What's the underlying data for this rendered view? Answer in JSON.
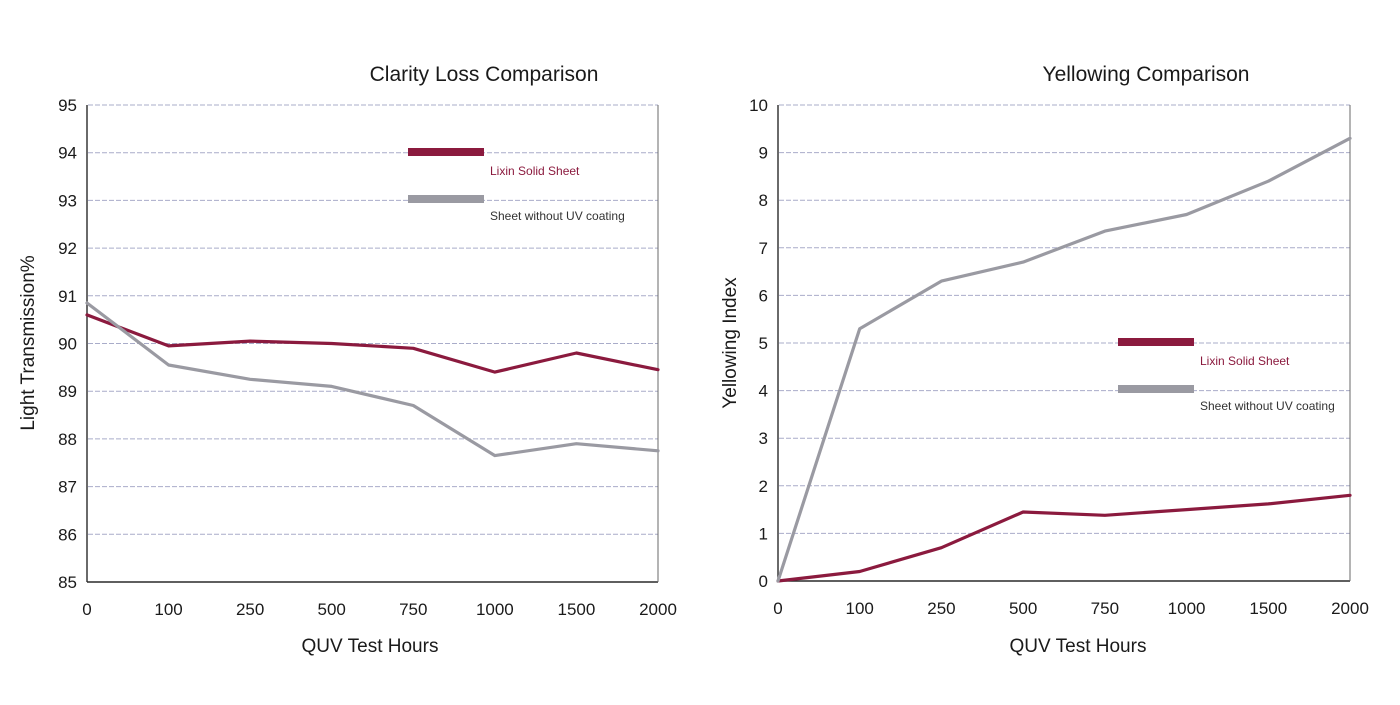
{
  "chart_data": [
    {
      "type": "line",
      "title": "Clarity Loss Comparison",
      "xlabel": "QUV Test Hours",
      "ylabel": "Light Transmission%",
      "categories": [
        "0",
        "100",
        "250",
        "500",
        "750",
        "1000",
        "1500",
        "2000"
      ],
      "ylim": [
        85,
        95
      ],
      "yticks": [
        85,
        86,
        87,
        88,
        89,
        90,
        91,
        92,
        93,
        94,
        95
      ],
      "grid": true,
      "legend_position": "top-right",
      "series": [
        {
          "name": "Lixin Solid Sheet",
          "color": "#8b1a3e",
          "values": [
            90.6,
            89.95,
            90.05,
            90.0,
            89.9,
            89.4,
            89.8,
            89.45
          ]
        },
        {
          "name": "Sheet without UV coating",
          "color": "#9a9aa2",
          "values": [
            90.85,
            89.55,
            89.25,
            89.1,
            88.7,
            87.65,
            87.9,
            87.75
          ]
        }
      ]
    },
    {
      "type": "line",
      "title": "Yellowing Comparison",
      "xlabel": "QUV Test Hours",
      "ylabel": "Yellowing Index",
      "categories": [
        "0",
        "100",
        "250",
        "500",
        "750",
        "1000",
        "1500",
        "2000"
      ],
      "ylim": [
        0,
        10
      ],
      "yticks": [
        0,
        1,
        2,
        3,
        4,
        5,
        6,
        7,
        8,
        9,
        10
      ],
      "grid": true,
      "legend_position": "center-right",
      "series": [
        {
          "name": "Lixin Solid Sheet",
          "color": "#8b1a3e",
          "values": [
            0.0,
            0.2,
            0.7,
            1.45,
            1.38,
            1.5,
            1.62,
            1.8
          ]
        },
        {
          "name": "Sheet without UV coating",
          "color": "#9a9aa2",
          "values": [
            0.0,
            5.3,
            6.3,
            6.7,
            7.35,
            7.7,
            8.4,
            9.3
          ]
        }
      ]
    }
  ]
}
